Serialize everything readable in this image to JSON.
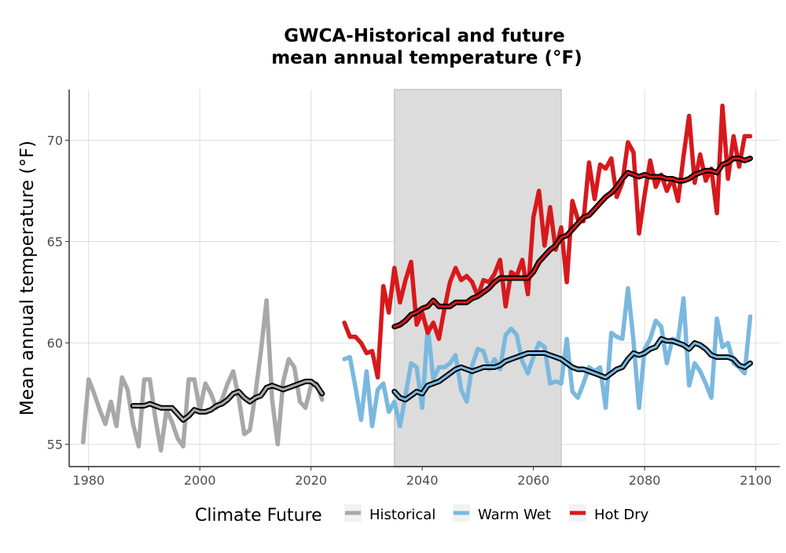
{
  "chart_data": {
    "type": "line",
    "title": "GWCA-Historical and future",
    "subtitle": "mean annual temperature (°F)",
    "xlabel": "",
    "ylabel": "Mean annual temperature (°F)",
    "xlim": [
      1976.5,
      2104.3
    ],
    "ylim": [
      53.9,
      72.5
    ],
    "x_ticks": [
      1980,
      2000,
      2020,
      2040,
      2060,
      2080,
      2100
    ],
    "y_ticks": [
      55,
      60,
      65,
      70
    ],
    "grid": true,
    "shaded_period": [
      2035,
      2065
    ],
    "legend": {
      "title": "Climate Future",
      "position": "bottom",
      "entries": [
        "Historical",
        "Warm Wet",
        "Hot Dry"
      ]
    },
    "colors": {
      "Historical": "#a8a8a8",
      "Warm Wet": "#7ab8df",
      "Hot Dry": "#d7191c",
      "smooth": "#000000",
      "shade": "#dcdcdc"
    },
    "series": [
      {
        "name": "Historical",
        "x": [
          1979,
          1980,
          1981,
          1982,
          1983,
          1984,
          1985,
          1986,
          1987,
          1988,
          1989,
          1990,
          1991,
          1992,
          1993,
          1994,
          1995,
          1996,
          1997,
          1998,
          1999,
          2000,
          2001,
          2002,
          2003,
          2004,
          2005,
          2006,
          2007,
          2008,
          2009,
          2010,
          2011,
          2012,
          2013,
          2014,
          2015,
          2016,
          2017,
          2018,
          2019,
          2020,
          2021,
          2022
        ],
        "values": [
          55.1,
          58.2,
          57.5,
          56.7,
          56.0,
          57.1,
          55.9,
          58.3,
          57.7,
          56.0,
          54.9,
          58.2,
          58.2,
          56.3,
          54.7,
          56.7,
          56.1,
          55.3,
          54.9,
          58.2,
          58.2,
          56.7,
          58.0,
          57.5,
          56.8,
          57.2,
          58.0,
          58.6,
          57.3,
          55.5,
          55.7,
          57.5,
          59.6,
          62.1,
          57.2,
          55.0,
          58.1,
          59.2,
          58.8,
          57.1,
          56.8,
          57.9,
          58.0,
          57.2
        ]
      },
      {
        "name": "Historical smoothed",
        "x": [
          1988,
          1989,
          1990,
          1991,
          1992,
          1993,
          1994,
          1995,
          1996,
          1997,
          1998,
          1999,
          2000,
          2001,
          2002,
          2003,
          2004,
          2005,
          2006,
          2007,
          2008,
          2009,
          2010,
          2011,
          2012,
          2013,
          2014,
          2015,
          2016,
          2017,
          2018,
          2019,
          2020,
          2021,
          2022
        ],
        "values": [
          56.9,
          56.9,
          56.9,
          57.0,
          56.9,
          56.8,
          56.8,
          56.8,
          56.5,
          56.2,
          56.4,
          56.7,
          56.6,
          56.6,
          56.7,
          56.9,
          57.0,
          57.2,
          57.5,
          57.6,
          57.3,
          57.1,
          57.3,
          57.4,
          57.8,
          57.9,
          57.8,
          57.7,
          57.8,
          57.9,
          58.0,
          58.1,
          58.1,
          57.9,
          57.5
        ]
      },
      {
        "name": "Warm Wet",
        "x": [
          2026,
          2027,
          2028,
          2029,
          2030,
          2031,
          2032,
          2033,
          2034,
          2035,
          2036,
          2037,
          2038,
          2039,
          2040,
          2041,
          2042,
          2043,
          2044,
          2045,
          2046,
          2047,
          2048,
          2049,
          2050,
          2051,
          2052,
          2053,
          2054,
          2055,
          2056,
          2057,
          2058,
          2059,
          2060,
          2061,
          2062,
          2063,
          2064,
          2065,
          2066,
          2067,
          2068,
          2069,
          2070,
          2071,
          2072,
          2073,
          2074,
          2075,
          2076,
          2077,
          2078,
          2079,
          2080,
          2081,
          2082,
          2083,
          2084,
          2085,
          2086,
          2087,
          2088,
          2089,
          2090,
          2091,
          2092,
          2093,
          2094,
          2095,
          2096,
          2097,
          2098,
          2099
        ],
        "values": [
          59.2,
          59.3,
          57.8,
          56.2,
          58.6,
          55.9,
          57.7,
          58.0,
          56.6,
          57.1,
          55.9,
          57.4,
          59.0,
          58.8,
          56.8,
          60.8,
          58.2,
          58.8,
          58.8,
          59.0,
          59.4,
          57.7,
          57.1,
          58.9,
          59.7,
          59.6,
          58.7,
          59.2,
          58.7,
          60.4,
          60.7,
          60.4,
          59.1,
          58.5,
          59.3,
          60.0,
          59.8,
          58.0,
          58.1,
          58.0,
          60.2,
          57.6,
          57.3,
          58.0,
          58.8,
          58.6,
          58.8,
          56.8,
          60.5,
          60.3,
          60.2,
          62.7,
          60.1,
          56.8,
          59.7,
          60.2,
          61.1,
          60.8,
          59.0,
          60.2,
          60.1,
          62.2,
          57.9,
          59.0,
          58.6,
          58.0,
          57.3,
          61.2,
          59.8,
          60.0,
          59.0,
          58.8,
          58.5,
          61.3
        ]
      },
      {
        "name": "Warm Wet smoothed",
        "x": [
          2035,
          2036,
          2037,
          2038,
          2039,
          2040,
          2041,
          2042,
          2043,
          2044,
          2045,
          2046,
          2047,
          2048,
          2049,
          2050,
          2051,
          2052,
          2053,
          2054,
          2055,
          2056,
          2057,
          2058,
          2059,
          2060,
          2061,
          2062,
          2063,
          2064,
          2065,
          2066,
          2067,
          2068,
          2069,
          2070,
          2071,
          2072,
          2073,
          2074,
          2075,
          2076,
          2077,
          2078,
          2079,
          2080,
          2081,
          2082,
          2083,
          2084,
          2085,
          2086,
          2087,
          2088,
          2089,
          2090,
          2091,
          2092,
          2093,
          2094,
          2095,
          2096,
          2097,
          2098,
          2099
        ],
        "values": [
          57.6,
          57.3,
          57.2,
          57.4,
          57.6,
          57.5,
          57.9,
          58.0,
          58.1,
          58.3,
          58.5,
          58.7,
          58.8,
          58.7,
          58.6,
          58.7,
          58.8,
          58.8,
          58.8,
          58.9,
          59.1,
          59.2,
          59.3,
          59.4,
          59.5,
          59.5,
          59.5,
          59.5,
          59.4,
          59.3,
          59.2,
          59.0,
          58.8,
          58.7,
          58.7,
          58.6,
          58.5,
          58.4,
          58.3,
          58.5,
          58.7,
          58.8,
          59.2,
          59.5,
          59.4,
          59.5,
          59.7,
          59.8,
          60.2,
          60.1,
          60.1,
          60.0,
          59.9,
          59.7,
          60.0,
          59.9,
          59.7,
          59.4,
          59.3,
          59.3,
          59.3,
          59.2,
          58.9,
          58.8,
          59.0
        ]
      },
      {
        "name": "Hot Dry",
        "x": [
          2026,
          2027,
          2028,
          2029,
          2030,
          2031,
          2032,
          2033,
          2034,
          2035,
          2036,
          2037,
          2038,
          2039,
          2040,
          2041,
          2042,
          2043,
          2044,
          2045,
          2046,
          2047,
          2048,
          2049,
          2050,
          2051,
          2052,
          2053,
          2054,
          2055,
          2056,
          2057,
          2058,
          2059,
          2060,
          2061,
          2062,
          2063,
          2064,
          2065,
          2066,
          2067,
          2068,
          2069,
          2070,
          2071,
          2072,
          2073,
          2074,
          2075,
          2076,
          2077,
          2078,
          2079,
          2080,
          2081,
          2082,
          2083,
          2084,
          2085,
          2086,
          2087,
          2088,
          2089,
          2090,
          2091,
          2092,
          2093,
          2094,
          2095,
          2096,
          2097,
          2098,
          2099
        ],
        "values": [
          61.0,
          60.3,
          60.3,
          60.0,
          59.5,
          59.6,
          58.3,
          62.8,
          61.5,
          63.7,
          62.0,
          63.1,
          64.0,
          60.9,
          61.5,
          60.5,
          61.0,
          60.2,
          61.7,
          63.0,
          63.7,
          63.1,
          63.3,
          63.0,
          62.3,
          63.1,
          63.0,
          63.4,
          64.1,
          61.8,
          63.5,
          63.3,
          64.1,
          62.4,
          66.2,
          67.5,
          64.8,
          66.7,
          64.6,
          65.7,
          63.0,
          67.0,
          66.1,
          66.0,
          68.9,
          67.1,
          68.8,
          68.6,
          69.1,
          67.2,
          67.9,
          69.9,
          69.4,
          65.4,
          67.3,
          69.0,
          67.7,
          68.3,
          67.5,
          68.1,
          67.0,
          69.2,
          71.2,
          67.9,
          69.3,
          68.0,
          68.6,
          66.4,
          71.7,
          68.1,
          70.2,
          68.7,
          70.2,
          70.2
        ]
      },
      {
        "name": "Hot Dry smoothed",
        "x": [
          2035,
          2036,
          2037,
          2038,
          2039,
          2040,
          2041,
          2042,
          2043,
          2044,
          2045,
          2046,
          2047,
          2048,
          2049,
          2050,
          2051,
          2052,
          2053,
          2054,
          2055,
          2056,
          2057,
          2058,
          2059,
          2060,
          2061,
          2062,
          2063,
          2064,
          2065,
          2066,
          2067,
          2068,
          2069,
          2070,
          2071,
          2072,
          2073,
          2074,
          2075,
          2076,
          2077,
          2078,
          2079,
          2080,
          2081,
          2082,
          2083,
          2084,
          2085,
          2086,
          2087,
          2088,
          2089,
          2090,
          2091,
          2092,
          2093,
          2094,
          2095,
          2096,
          2097,
          2098,
          2099
        ],
        "values": [
          60.8,
          60.9,
          61.1,
          61.4,
          61.5,
          61.7,
          61.8,
          62.1,
          61.8,
          61.8,
          61.8,
          62.0,
          62.0,
          62.0,
          62.2,
          62.3,
          62.5,
          62.7,
          63.0,
          63.2,
          63.2,
          63.2,
          63.2,
          63.2,
          63.2,
          63.5,
          64.0,
          64.3,
          64.6,
          64.8,
          65.2,
          65.3,
          65.6,
          65.9,
          66.2,
          66.3,
          66.6,
          66.9,
          67.2,
          67.4,
          67.7,
          68.1,
          68.4,
          68.3,
          68.2,
          68.3,
          68.2,
          68.2,
          68.2,
          68.1,
          68.1,
          68.0,
          68.0,
          68.1,
          68.3,
          68.4,
          68.5,
          68.5,
          68.4,
          68.8,
          68.9,
          69.1,
          69.1,
          69.0,
          69.1
        ]
      }
    ]
  }
}
